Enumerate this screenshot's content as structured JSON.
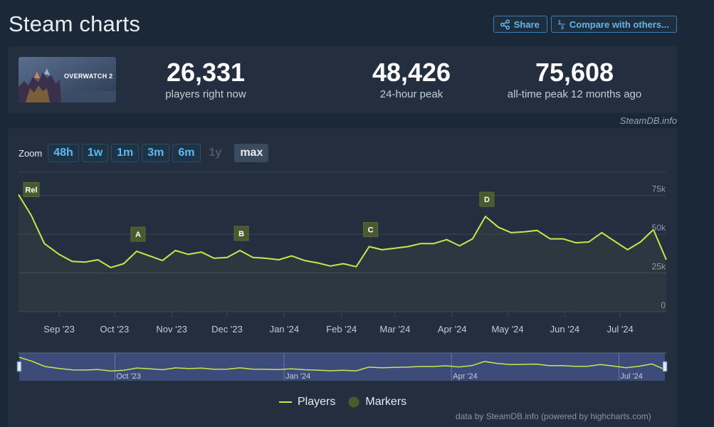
{
  "page_title": "Steam charts",
  "actions": {
    "share_label": "Share",
    "compare_label": "Compare with others..."
  },
  "stats": [
    {
      "value": "26,331",
      "label": "players right now"
    },
    {
      "value": "48,426",
      "label": "24-hour peak"
    },
    {
      "value": "75,608",
      "label": "all-time peak 12 months ago"
    }
  ],
  "thumbnail_text": "OVERWATCH 2",
  "credit": "SteamDB.info",
  "zoom": {
    "label": "Zoom",
    "buttons": [
      {
        "label": "48h",
        "state": "enabled"
      },
      {
        "label": "1w",
        "state": "enabled"
      },
      {
        "label": "1m",
        "state": "enabled"
      },
      {
        "label": "3m",
        "state": "enabled"
      },
      {
        "label": "6m",
        "state": "enabled"
      },
      {
        "label": "1y",
        "state": "disabled"
      },
      {
        "label": "max",
        "state": "active"
      }
    ]
  },
  "legend": {
    "players": "Players",
    "markers": "Markers"
  },
  "footer": "data by SteamDB.info (powered by highcharts.com)",
  "colors": {
    "series": "#c7e84a",
    "marker_bg": "#4a5a2c",
    "accent": "#60b6ea",
    "background": "#1b2838",
    "panel": "#232f3f"
  },
  "chart_data": {
    "type": "line",
    "ylim": [
      0,
      90000
    ],
    "y_ticks": [
      0,
      25000,
      50000,
      75000
    ],
    "y_tick_labels": [
      "0",
      "25k",
      "50k",
      "75k"
    ],
    "x_range": [
      "2023-08-10",
      "2024-07-26"
    ],
    "x_ticks": [
      {
        "date": "2023-09-01",
        "label": "Sep '23"
      },
      {
        "date": "2023-10-01",
        "label": "Oct '23"
      },
      {
        "date": "2023-11-01",
        "label": "Nov '23"
      },
      {
        "date": "2023-12-01",
        "label": "Dec '23"
      },
      {
        "date": "2024-01-01",
        "label": "Jan '24"
      },
      {
        "date": "2024-02-01",
        "label": "Feb '24"
      },
      {
        "date": "2024-03-01",
        "label": "Mar '24"
      },
      {
        "date": "2024-04-01",
        "label": "Apr '24"
      },
      {
        "date": "2024-05-01",
        "label": "May '24"
      },
      {
        "date": "2024-06-01",
        "label": "Jun '24"
      },
      {
        "date": "2024-07-01",
        "label": "Jul '24"
      }
    ],
    "navigator_labels": [
      {
        "date": "2023-10-01",
        "label": "Oct '23"
      },
      {
        "date": "2024-01-01",
        "label": "Jan '24"
      },
      {
        "date": "2024-04-01",
        "label": "Apr '24"
      },
      {
        "date": "2024-07-01",
        "label": "Jul '24"
      }
    ],
    "series": [
      {
        "name": "Players",
        "points": [
          [
            "2023-08-10",
            75600
          ],
          [
            "2023-08-17",
            62000
          ],
          [
            "2023-08-24",
            44000
          ],
          [
            "2023-09-01",
            37000
          ],
          [
            "2023-09-08",
            32500
          ],
          [
            "2023-09-15",
            32000
          ],
          [
            "2023-09-22",
            33500
          ],
          [
            "2023-09-29",
            28500
          ],
          [
            "2023-10-06",
            31000
          ],
          [
            "2023-10-13",
            39000
          ],
          [
            "2023-10-20",
            36000
          ],
          [
            "2023-10-27",
            33000
          ],
          [
            "2023-11-03",
            39500
          ],
          [
            "2023-11-10",
            37000
          ],
          [
            "2023-11-17",
            38500
          ],
          [
            "2023-11-24",
            34500
          ],
          [
            "2023-12-01",
            35000
          ],
          [
            "2023-12-08",
            39500
          ],
          [
            "2023-12-15",
            35000
          ],
          [
            "2023-12-22",
            34500
          ],
          [
            "2023-12-29",
            33500
          ],
          [
            "2024-01-05",
            36000
          ],
          [
            "2024-01-12",
            33000
          ],
          [
            "2024-01-19",
            31500
          ],
          [
            "2024-01-26",
            29500
          ],
          [
            "2024-02-02",
            31000
          ],
          [
            "2024-02-09",
            29000
          ],
          [
            "2024-02-16",
            42000
          ],
          [
            "2024-02-23",
            40000
          ],
          [
            "2024-03-01",
            41000
          ],
          [
            "2024-03-08",
            42000
          ],
          [
            "2024-03-15",
            44000
          ],
          [
            "2024-03-22",
            44000
          ],
          [
            "2024-03-29",
            46500
          ],
          [
            "2024-04-05",
            42500
          ],
          [
            "2024-04-12",
            47000
          ],
          [
            "2024-04-19",
            61500
          ],
          [
            "2024-04-26",
            54500
          ],
          [
            "2024-05-03",
            51000
          ],
          [
            "2024-05-10",
            51500
          ],
          [
            "2024-05-17",
            52500
          ],
          [
            "2024-05-24",
            47000
          ],
          [
            "2024-05-31",
            47000
          ],
          [
            "2024-06-07",
            44500
          ],
          [
            "2024-06-14",
            45000
          ],
          [
            "2024-06-21",
            51000
          ],
          [
            "2024-06-28",
            45500
          ],
          [
            "2024-07-05",
            40000
          ],
          [
            "2024-07-12",
            45000
          ],
          [
            "2024-07-19",
            53000
          ],
          [
            "2024-07-26",
            33500
          ]
        ]
      }
    ],
    "markers": [
      {
        "label": "Rel",
        "date": "2023-08-10"
      },
      {
        "label": "A",
        "date": "2023-10-13"
      },
      {
        "label": "B",
        "date": "2023-12-08"
      },
      {
        "label": "C",
        "date": "2024-02-16"
      },
      {
        "label": "D",
        "date": "2024-04-19"
      }
    ]
  }
}
